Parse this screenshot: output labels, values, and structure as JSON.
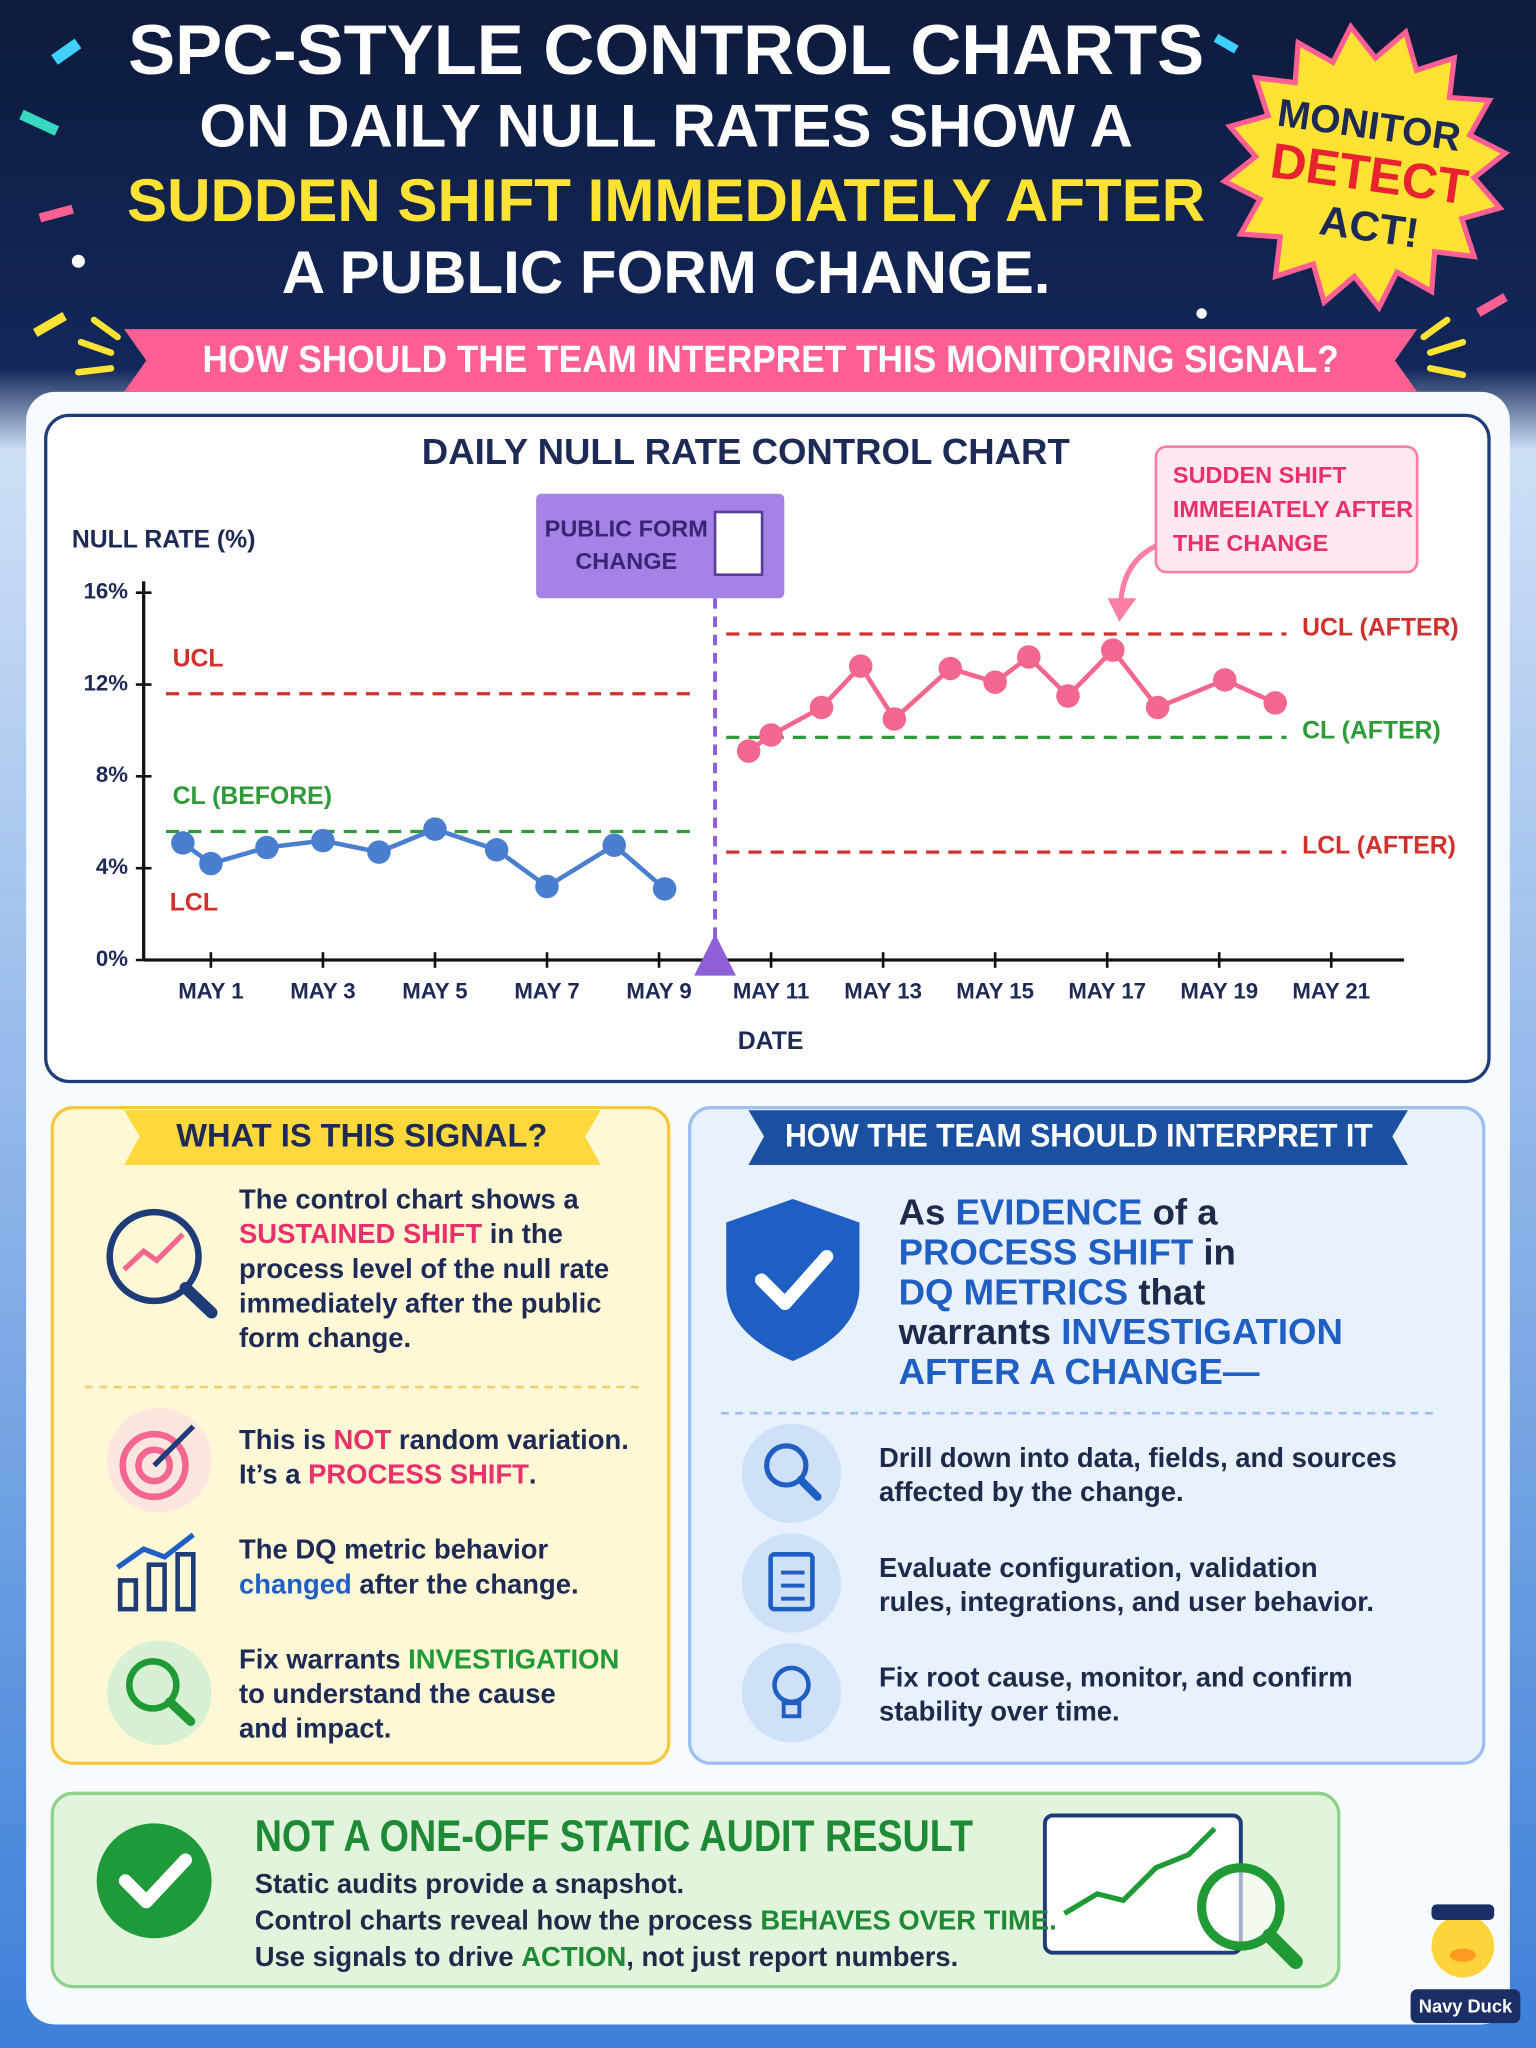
{
  "header": {
    "title": [
      [
        "SPC-STYLE CONTROL CHARTS"
      ],
      [
        "ON DAILY NULL RATES SHOW A"
      ],
      [
        {
          "text": "SUDDEN SHIFT IMMEDIATELY AFTER",
          "color": "#ffe234"
        }
      ],
      [
        "A PUBLIC FORM CHANGE."
      ]
    ],
    "badge": [
      "MONITOR",
      "DETECT",
      "ACT!"
    ],
    "banner": "HOW SHOULD THE TEAM INTERPRET THIS MONITORING SIGNAL?"
  },
  "chart_data": {
    "type": "line",
    "title": "DAILY NULL RATE CONTROL CHART",
    "y_label": "NULL RATE (%)",
    "x_label": "DATE",
    "xlim": [
      -0.2,
      22.3
    ],
    "ylim": [
      0,
      16.5
    ],
    "xticks": [
      {
        "value": 1,
        "label": "MAY 1"
      },
      {
        "value": 3,
        "label": "MAY 3"
      },
      {
        "value": 5,
        "label": "MAY 5"
      },
      {
        "value": 7,
        "label": "MAY 7"
      },
      {
        "value": 9,
        "label": "MAY 9"
      },
      {
        "value": 11,
        "label": "MAY 11"
      },
      {
        "value": 13,
        "label": "MAY 13"
      },
      {
        "value": 15,
        "label": "MAY 15"
      },
      {
        "value": 17,
        "label": "MAY 17"
      },
      {
        "value": 19,
        "label": "MAY 19"
      },
      {
        "value": 21,
        "label": "MAY 21"
      }
    ],
    "yticks": [
      {
        "value": 0,
        "label": "0%"
      },
      {
        "value": 4,
        "label": "4%"
      },
      {
        "value": 8,
        "label": "8%"
      },
      {
        "value": 12,
        "label": "12%"
      },
      {
        "value": 16,
        "label": "16%"
      }
    ],
    "grid": false,
    "series": [
      {
        "color": "#4a7fcf",
        "x": [
          0.5,
          1.0,
          2.0,
          3.0,
          4.0,
          5.0,
          6.1,
          7.0,
          8.2,
          9.1
        ],
        "values": [
          5.1,
          4.2,
          4.9,
          5.2,
          4.7,
          5.7,
          4.8,
          3.2,
          5.0,
          3.1
        ]
      },
      {
        "color": "#f2668f",
        "x": [
          10.6,
          11.0,
          11.9,
          12.6,
          13.2,
          14.2,
          15.0,
          15.6,
          16.3,
          17.1,
          17.9,
          19.1,
          20.0
        ],
        "values": [
          9.1,
          9.8,
          11.0,
          12.8,
          10.5,
          12.7,
          12.1,
          13.2,
          11.5,
          13.5,
          11.0,
          12.2,
          11.2
        ]
      }
    ],
    "limits": [
      {
        "name": "UCL",
        "value": 11.6,
        "x": [
          0.2,
          9.7
        ],
        "color": "#d0312d"
      },
      {
        "name": "CL (BEFORE)",
        "value": 5.6,
        "x": [
          0.2,
          9.7
        ],
        "color": "#2e9a3a"
      },
      {
        "name": "UCL (AFTER)",
        "value": 14.2,
        "x": [
          10.2,
          20.2
        ],
        "color": "#d0312d"
      },
      {
        "name": "CL (AFTER)",
        "value": 9.7,
        "x": [
          10.2,
          20.2
        ],
        "color": "#2e9a3a"
      },
      {
        "name": "LCL (AFTER)",
        "value": 4.7,
        "x": [
          10.2,
          20.2
        ],
        "color": "#d0312d"
      }
    ],
    "lcl_label": "LCL",
    "event": {
      "label": [
        "PUBLIC FORM",
        "CHANGE"
      ],
      "x": 10
    },
    "callout": [
      "SUDDEN SHIFT",
      "IMMEEIATELY AFTER",
      "THE CHANGE"
    ]
  },
  "left_panel": {
    "heading": "WHAT IS THIS SIGNAL?",
    "intro": [
      [
        "The control chart shows a"
      ],
      [
        {
          "text": "SUSTAINED SHIFT",
          "color": "#e8306b"
        },
        " in the"
      ],
      [
        "process level of the null rate"
      ],
      [
        "immediately after the public"
      ],
      [
        "form change."
      ]
    ],
    "items": [
      [
        [
          "This is ",
          {
            "text": "NOT",
            "color": "#e8306b"
          },
          " random variation."
        ],
        [
          "It’s a ",
          {
            "text": "PROCESS SHIFT",
            "color": "#e8306b"
          },
          "."
        ]
      ],
      [
        [
          "The DQ metric behavior"
        ],
        [
          {
            "text": "changed",
            "color": "#1f5fc4"
          },
          " after the change."
        ]
      ],
      [
        [
          "Fix warrants ",
          {
            "text": "INVESTIGATION",
            "color": "#1f9a35"
          }
        ],
        [
          "to understand the cause"
        ],
        [
          "and impact."
        ]
      ]
    ]
  },
  "right_panel": {
    "heading": "HOW THE TEAM SHOULD INTERPRET IT",
    "statement": [
      [
        "As ",
        {
          "text": "EVIDENCE",
          "color": "#1f5fc4"
        },
        " of a"
      ],
      [
        {
          "text": "PROCESS SHIFT",
          "color": "#1f5fc4"
        },
        " in"
      ],
      [
        {
          "text": "DQ METRICS",
          "color": "#1f5fc4"
        },
        " that"
      ],
      [
        "warrants ",
        {
          "text": "INVESTIGATION",
          "color": "#1f5fc4"
        }
      ],
      [
        {
          "text": "AFTER A CHANGE—",
          "color": "#1f5fc4"
        }
      ]
    ],
    "items": [
      [
        [
          "Drill down into data, fields, and sources"
        ],
        [
          "affected by the change."
        ]
      ],
      [
        [
          "Evaluate configuration, validation"
        ],
        [
          "rules, integrations, and user behavior."
        ]
      ],
      [
        [
          "Fix root cause, monitor, and confirm"
        ],
        [
          "stability over time."
        ]
      ]
    ]
  },
  "bottom_panel": {
    "title": "NOT A ONE-OFF STATIC AUDIT RESULT",
    "lines": [
      [
        "Static audits provide a snapshot."
      ],
      [
        "Control charts reveal how the process ",
        {
          "text": "BEHAVES OVER TIME.",
          "color": "#1f8a35"
        }
      ],
      [
        "Use signals to drive ",
        {
          "text": "ACTION",
          "color": "#1f8a35"
        },
        ", not just report numbers."
      ]
    ]
  },
  "mascot": "Navy Duck"
}
